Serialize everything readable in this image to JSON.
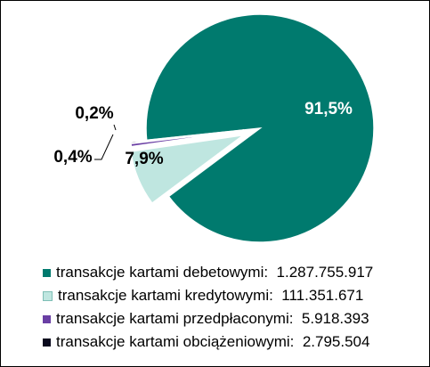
{
  "chart_data": {
    "type": "pie",
    "exploded": true,
    "slices": [
      {
        "label": "transakcje kartami debetowymi:",
        "value": 1287755917,
        "value_text": "1.287.755.917",
        "percent_text": "91,5%",
        "color": "#007a6e"
      },
      {
        "label": "transakcje kartami kredytowymi:",
        "value": 111351671,
        "value_text": "111.351.671",
        "percent_text": "7,9%",
        "color": "#bfe6e0"
      },
      {
        "label": "transakcje kartami przedpłaconymi:",
        "value": 5918393,
        "value_text": "5.918.393",
        "percent_text": "0,4%",
        "color": "#6a3fa4"
      },
      {
        "label": "transakcje kartami obciążeniowymi:",
        "value": 2795504,
        "value_text": "2.795.504",
        "percent_text": "0,2%",
        "color": "#0a0a1e"
      }
    ],
    "legend_position": "bottom"
  }
}
